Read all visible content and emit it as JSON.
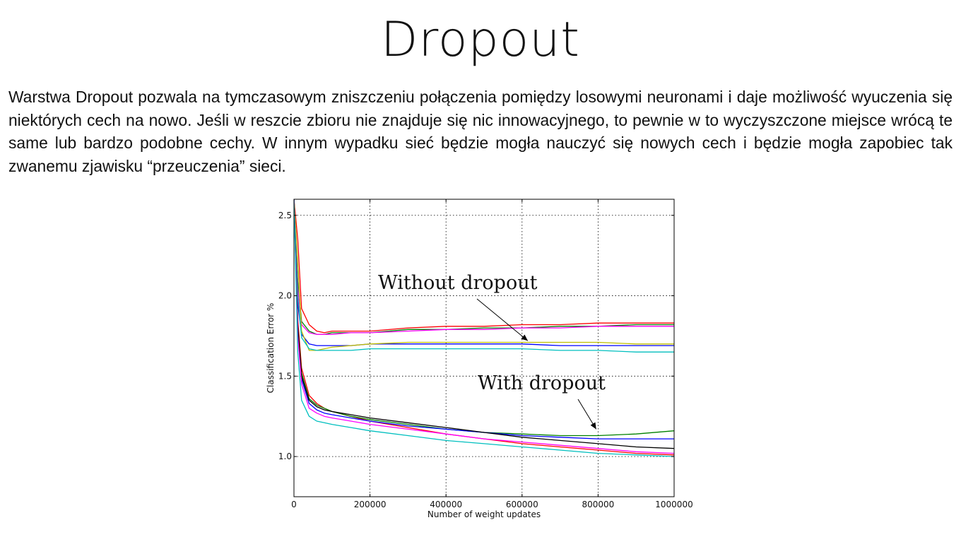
{
  "slide": {
    "title": "Dropout",
    "paragraph": "Warstwa Dropout pozwala na tymczasowym zniszczeniu połączenia pomiędzy losowymi neuronami i daje możliwość wyuczenia się niektórych cech na nowo. Jeśli w reszcie zbioru nie znajduje się nic innowacyjnego, to pewnie w to wyczyszczone miejsce wrócą te same lub bardzo podobne cechy. W innym wypadku sieć będzie mogła nauczyć się nowych cech i będzie mogła zapobiec tak zwanemu zjawisku “przeuczenia” sieci."
  },
  "chart_data": {
    "type": "line",
    "xlabel": "Number of weight updates",
    "ylabel": "Classification Error %",
    "xlim": [
      0,
      1000000
    ],
    "ylim": [
      0.75,
      2.6
    ],
    "xticks": [
      0,
      200000,
      400000,
      600000,
      800000,
      1000000
    ],
    "xtick_labels": [
      "0",
      "200000",
      "400000",
      "600000",
      "800000",
      "1000000"
    ],
    "yticks": [
      1.0,
      1.5,
      2.0,
      2.5
    ],
    "ytick_labels": [
      "1.0",
      "1.5",
      "2.0",
      "2.5"
    ],
    "grid": true,
    "annotations": [
      {
        "text": "Without dropout",
        "arrow_to": [
          615000,
          1.72
        ]
      },
      {
        "text": "With dropout",
        "arrow_to": [
          795000,
          1.17
        ]
      }
    ],
    "series": [
      {
        "group": "without",
        "color": "#ff0000",
        "x": [
          0,
          10000,
          20000,
          40000,
          60000,
          80000,
          100000,
          150000,
          200000,
          300000,
          400000,
          500000,
          600000,
          700000,
          800000,
          900000,
          1000000
        ],
        "values": [
          2.6,
          2.35,
          1.92,
          1.82,
          1.78,
          1.77,
          1.78,
          1.78,
          1.78,
          1.8,
          1.81,
          1.81,
          1.82,
          1.82,
          1.83,
          1.83,
          1.83
        ]
      },
      {
        "group": "without",
        "color": "#008000",
        "x": [
          0,
          10000,
          20000,
          40000,
          60000,
          80000,
          100000,
          150000,
          200000,
          300000,
          400000,
          500000,
          600000,
          700000,
          800000,
          900000,
          1000000
        ],
        "values": [
          2.6,
          2.1,
          1.84,
          1.78,
          1.76,
          1.76,
          1.77,
          1.77,
          1.77,
          1.79,
          1.79,
          1.8,
          1.8,
          1.81,
          1.81,
          1.82,
          1.82
        ]
      },
      {
        "group": "without",
        "color": "#ff00ff",
        "x": [
          0,
          10000,
          20000,
          40000,
          60000,
          80000,
          100000,
          150000,
          200000,
          300000,
          400000,
          500000,
          600000,
          700000,
          800000,
          900000,
          1000000
        ],
        "values": [
          2.6,
          2.05,
          1.82,
          1.77,
          1.76,
          1.76,
          1.76,
          1.77,
          1.77,
          1.78,
          1.79,
          1.79,
          1.8,
          1.8,
          1.81,
          1.81,
          1.81
        ]
      },
      {
        "group": "without",
        "color": "#0000ff",
        "x": [
          0,
          10000,
          20000,
          40000,
          60000,
          80000,
          100000,
          150000,
          200000,
          300000,
          400000,
          500000,
          600000,
          700000,
          800000,
          900000,
          1000000
        ],
        "values": [
          2.6,
          1.95,
          1.76,
          1.7,
          1.69,
          1.69,
          1.69,
          1.69,
          1.7,
          1.7,
          1.7,
          1.7,
          1.7,
          1.69,
          1.69,
          1.69,
          1.69
        ]
      },
      {
        "group": "without",
        "color": "#bfbf00",
        "x": [
          0,
          10000,
          20000,
          40000,
          60000,
          80000,
          100000,
          150000,
          200000,
          300000,
          400000,
          500000,
          600000,
          700000,
          800000,
          900000,
          1000000
        ],
        "values": [
          2.6,
          2.2,
          1.78,
          1.66,
          1.66,
          1.67,
          1.68,
          1.69,
          1.7,
          1.71,
          1.71,
          1.71,
          1.71,
          1.71,
          1.71,
          1.7,
          1.7
        ]
      },
      {
        "group": "without",
        "color": "#00bfbf",
        "x": [
          0,
          10000,
          20000,
          40000,
          60000,
          80000,
          100000,
          150000,
          200000,
          300000,
          400000,
          500000,
          600000,
          700000,
          800000,
          900000,
          1000000
        ],
        "values": [
          2.6,
          2.0,
          1.74,
          1.67,
          1.66,
          1.66,
          1.66,
          1.66,
          1.67,
          1.67,
          1.67,
          1.67,
          1.67,
          1.66,
          1.66,
          1.65,
          1.65
        ]
      },
      {
        "group": "with",
        "color": "#ff0000",
        "x": [
          0,
          10000,
          20000,
          40000,
          60000,
          80000,
          100000,
          150000,
          200000,
          300000,
          400000,
          500000,
          600000,
          700000,
          800000,
          900000,
          1000000
        ],
        "values": [
          2.6,
          1.85,
          1.55,
          1.38,
          1.33,
          1.3,
          1.28,
          1.25,
          1.22,
          1.18,
          1.14,
          1.11,
          1.08,
          1.06,
          1.04,
          1.02,
          1.01
        ]
      },
      {
        "group": "with",
        "color": "#008000",
        "x": [
          0,
          10000,
          20000,
          40000,
          60000,
          80000,
          100000,
          150000,
          200000,
          300000,
          400000,
          500000,
          600000,
          700000,
          800000,
          900000,
          1000000
        ],
        "values": [
          2.6,
          1.8,
          1.52,
          1.36,
          1.32,
          1.3,
          1.28,
          1.25,
          1.23,
          1.2,
          1.17,
          1.15,
          1.14,
          1.13,
          1.13,
          1.14,
          1.16
        ]
      },
      {
        "group": "with",
        "color": "#0000ff",
        "x": [
          0,
          10000,
          20000,
          40000,
          60000,
          80000,
          100000,
          150000,
          200000,
          300000,
          400000,
          500000,
          600000,
          700000,
          800000,
          900000,
          1000000
        ],
        "values": [
          2.6,
          1.78,
          1.48,
          1.33,
          1.29,
          1.27,
          1.26,
          1.24,
          1.22,
          1.19,
          1.17,
          1.15,
          1.13,
          1.12,
          1.11,
          1.11,
          1.11
        ]
      },
      {
        "group": "with",
        "color": "#000000",
        "x": [
          0,
          10000,
          20000,
          40000,
          60000,
          80000,
          100000,
          150000,
          200000,
          300000,
          400000,
          500000,
          600000,
          700000,
          800000,
          900000,
          1000000
        ],
        "values": [
          2.6,
          1.82,
          1.5,
          1.35,
          1.31,
          1.29,
          1.28,
          1.26,
          1.24,
          1.21,
          1.18,
          1.15,
          1.12,
          1.1,
          1.08,
          1.06,
          1.05
        ]
      },
      {
        "group": "with",
        "color": "#ff00ff",
        "x": [
          0,
          10000,
          20000,
          40000,
          60000,
          80000,
          100000,
          150000,
          200000,
          300000,
          400000,
          500000,
          600000,
          700000,
          800000,
          900000,
          1000000
        ],
        "values": [
          2.6,
          1.75,
          1.45,
          1.3,
          1.27,
          1.25,
          1.24,
          1.22,
          1.2,
          1.17,
          1.14,
          1.11,
          1.09,
          1.07,
          1.05,
          1.03,
          1.02
        ]
      },
      {
        "group": "with",
        "color": "#00bfbf",
        "x": [
          0,
          10000,
          20000,
          40000,
          60000,
          80000,
          100000,
          150000,
          200000,
          300000,
          400000,
          500000,
          600000,
          700000,
          800000,
          900000,
          1000000
        ],
        "values": [
          2.6,
          1.65,
          1.35,
          1.25,
          1.22,
          1.21,
          1.2,
          1.18,
          1.16,
          1.13,
          1.1,
          1.08,
          1.06,
          1.04,
          1.02,
          1.01,
          1.0
        ]
      }
    ]
  }
}
